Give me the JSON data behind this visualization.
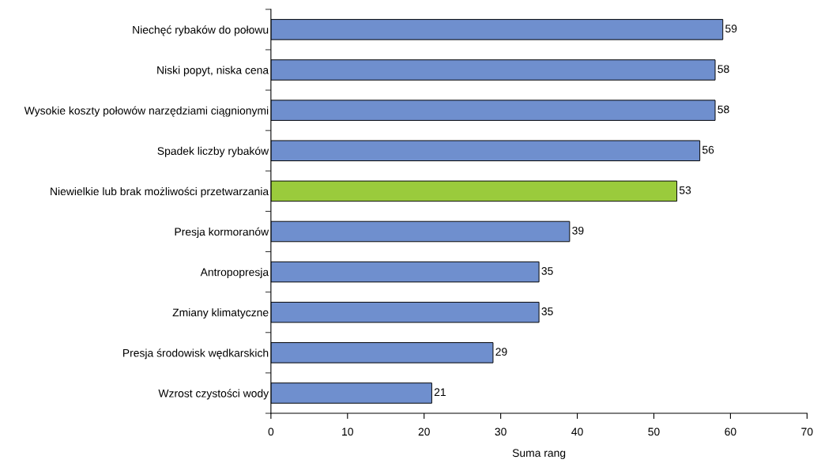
{
  "chart_data": {
    "type": "bar",
    "orientation": "horizontal",
    "xlabel": "Suma rang",
    "categories": [
      "Niechęć rybaków do połowu",
      "Niski popyt, niska cena",
      "Wysokie koszty połowów narzędziami ciągnionymi",
      "Spadek liczby rybaków",
      "Niewielkie lub brak możliwości przetwarzania",
      "Presja kormoranów",
      "Antropopresja",
      "Zmiany klimatyczne",
      "Presja środowisk wędkarskich",
      "Wzrost czystości wody"
    ],
    "values": [
      59,
      58,
      58,
      56,
      53,
      39,
      35,
      35,
      29,
      21
    ],
    "colors": [
      "#6f8fce",
      "#6f8fce",
      "#6f8fce",
      "#6f8fce",
      "#9acb3c",
      "#6f8fce",
      "#6f8fce",
      "#6f8fce",
      "#6f8fce",
      "#6f8fce"
    ],
    "xlim": [
      0,
      70
    ],
    "xticks": [
      0,
      10,
      20,
      30,
      40,
      50,
      60,
      70
    ],
    "data_labels": true,
    "grid": false,
    "legend": false
  }
}
